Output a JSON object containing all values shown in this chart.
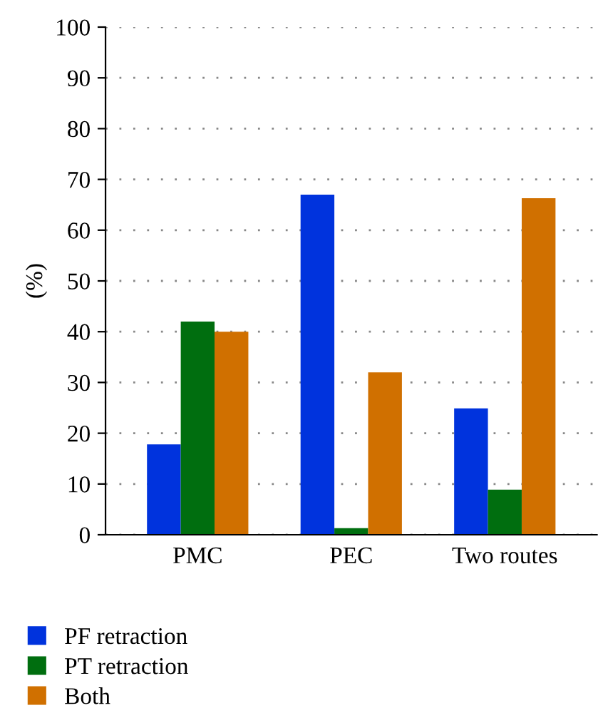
{
  "chart_data": {
    "type": "bar",
    "ylabel": "(%)",
    "categories": [
      "PMC",
      "PEC",
      "Two routes"
    ],
    "series": [
      {
        "name": "PF retraction",
        "color": "#0033dd",
        "values": [
          17.8,
          67,
          24.9
        ]
      },
      {
        "name": "PT retraction",
        "color": "#006e0f",
        "values": [
          42,
          1.3,
          8.9
        ]
      },
      {
        "name": "Both",
        "color": "#d07000",
        "values": [
          40,
          32,
          66.3
        ]
      }
    ],
    "ylim": [
      0,
      100
    ],
    "yticks": [
      0,
      10,
      20,
      30,
      40,
      50,
      60,
      70,
      80,
      90,
      100
    ],
    "grid": "y",
    "legend": "bottom left"
  }
}
